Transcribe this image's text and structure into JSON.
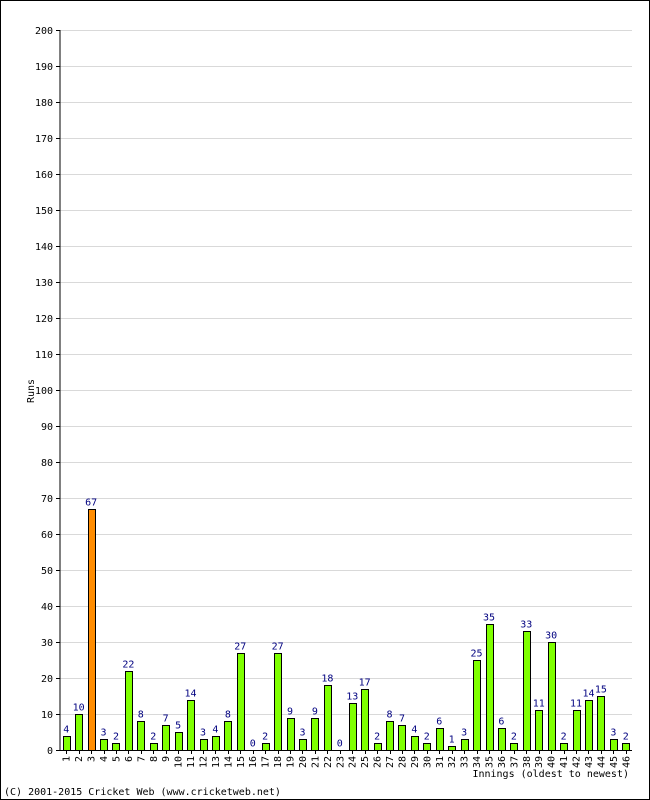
{
  "chart_data": {
    "type": "bar",
    "ylabel": "Runs",
    "xlabel": "Innings (oldest to newest)",
    "ylim": [
      0,
      200
    ],
    "y_ticks": [
      0,
      10,
      20,
      30,
      40,
      50,
      60,
      70,
      80,
      90,
      100,
      110,
      120,
      130,
      140,
      150,
      160,
      170,
      180,
      190,
      200
    ],
    "grid": true,
    "categories": [
      "1",
      "2",
      "3",
      "4",
      "5",
      "6",
      "7",
      "8",
      "9",
      "10",
      "11",
      "12",
      "13",
      "14",
      "15",
      "16",
      "17",
      "18",
      "19",
      "20",
      "21",
      "22",
      "23",
      "24",
      "25",
      "26",
      "27",
      "28",
      "29",
      "30",
      "31",
      "32",
      "33",
      "34",
      "35",
      "36",
      "37",
      "38",
      "39",
      "40",
      "41",
      "42",
      "43",
      "44",
      "45",
      "46"
    ],
    "values": [
      4,
      10,
      67,
      3,
      2,
      22,
      8,
      2,
      7,
      5,
      14,
      3,
      4,
      8,
      27,
      0,
      2,
      27,
      9,
      3,
      9,
      18,
      0,
      13,
      17,
      2,
      8,
      7,
      4,
      2,
      6,
      1,
      3,
      25,
      35,
      6,
      2,
      33,
      11,
      30,
      2,
      11,
      14,
      15,
      3,
      2
    ],
    "highlight_index": 2,
    "colors": {
      "bar": "#7fff00",
      "highlight": "#ff8c00",
      "bar_border": "#000000",
      "grid": "#d9d9d9",
      "data_label": "#000080"
    }
  },
  "footer": {
    "copyright": "(C) 2001-2015 Cricket Web (www.cricketweb.net)"
  }
}
